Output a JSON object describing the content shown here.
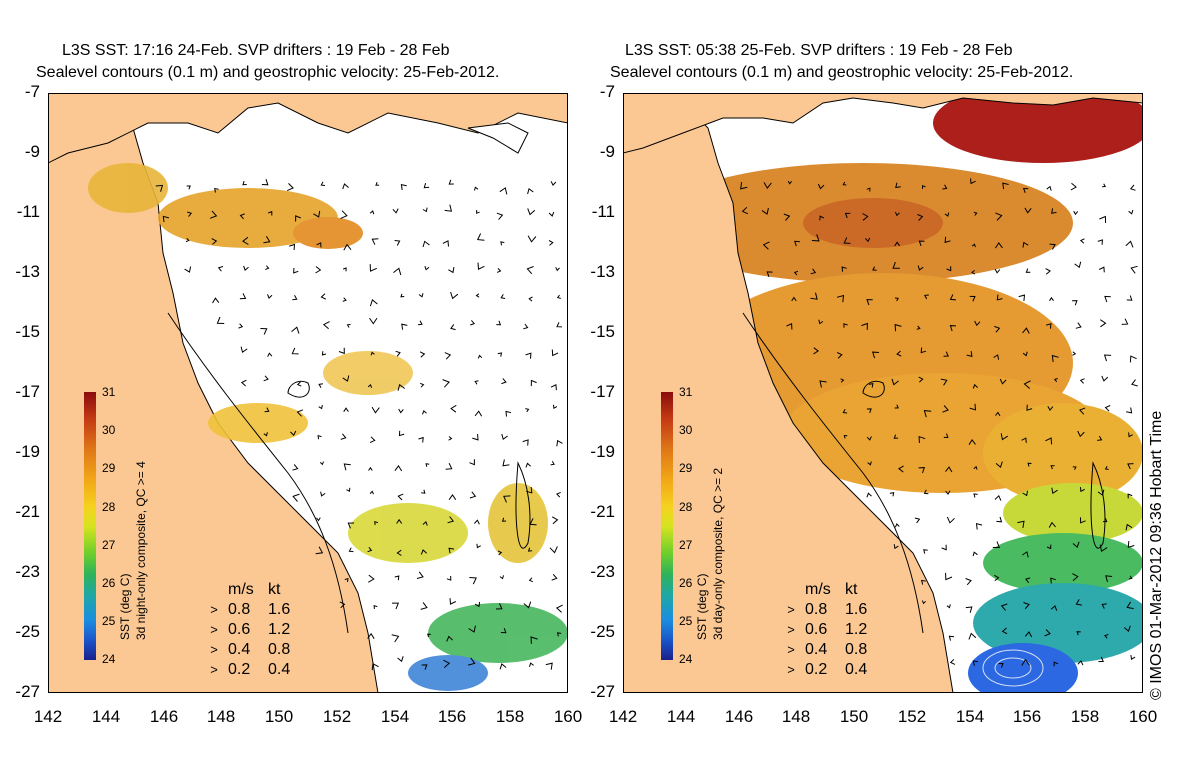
{
  "panels": [
    {
      "title_line1": "L3S SST: 17:16 24-Feb. SVP drifters : 19 Feb - 28 Feb",
      "title_line2": "Sealevel contours (0.1 m) and geostrophic velocity: 25-Feb-2012.",
      "colorbar_label_line1": "SST (deg C)",
      "colorbar_label_line2": "3d night-only composite, QC >= 4"
    },
    {
      "title_line1": "L3S SST: 05:38 25-Feb. SVP drifters : 19 Feb - 28 Feb",
      "title_line2": "Sealevel contours (0.1 m) and geostrophic velocity: 25-Feb-2012.",
      "colorbar_label_line1": "SST (deg C)",
      "colorbar_label_line2": "3d day-only composite, QC >= 2"
    }
  ],
  "y_ticks": [
    "-7",
    "-9",
    "-11",
    "-13",
    "-15",
    "-17",
    "-19",
    "-21",
    "-23",
    "-25",
    "-27"
  ],
  "x_ticks": [
    "142",
    "144",
    "146",
    "148",
    "150",
    "152",
    "154",
    "156",
    "158",
    "160"
  ],
  "colorbar_ticks": [
    "31",
    "30",
    "29",
    "28",
    "27",
    "26",
    "25",
    "24"
  ],
  "velocity_legend": {
    "header_ms": "m/s",
    "header_kt": "kt",
    "rows": [
      {
        "ms": "0.8",
        "kt": "1.6"
      },
      {
        "ms": "0.6",
        "kt": "1.2"
      },
      {
        "ms": "0.4",
        "kt": "0.8"
      },
      {
        "ms": "0.2",
        "kt": "0.4"
      }
    ]
  },
  "copyright": "© IMOS 01-Mar-2012 09:36 Hobart Time",
  "colors": {
    "land": "#fbc894",
    "coastline": "#000000",
    "sst_warm": "#e08a1a",
    "sst_hot": "#a8140e",
    "sst_mid": "#f5c21f",
    "sst_cool": "#3fbf4f",
    "sst_cold": "#1a6fe0"
  }
}
